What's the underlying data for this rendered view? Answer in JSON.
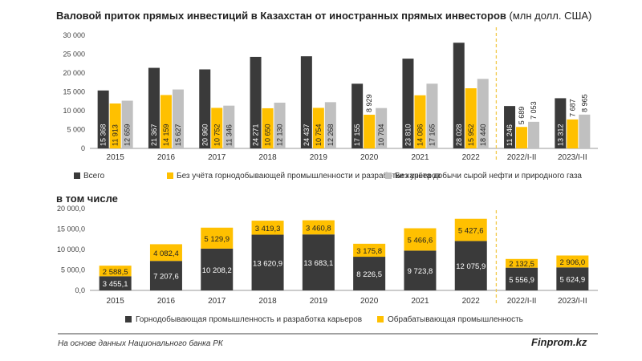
{
  "title": "Валовой приток прямых инвестиций в Казахстан от иностранных прямых инвесторов",
  "title_unit": "(млн долл. США)",
  "subtitle": "в том числе",
  "footer": {
    "source": "На основе данных Национального банка РК",
    "brand": "Finprom.kz"
  },
  "colors": {
    "dark": "#3a3a3a",
    "yellow": "#ffc000",
    "gray": "#c0c0c0",
    "divider": "#f2c94c"
  },
  "chart_data": [
    {
      "type": "bar",
      "categories": [
        "2015",
        "2016",
        "2017",
        "2018",
        "2019",
        "2020",
        "2021",
        "2022",
        "2022/I-II",
        "2023/I-II"
      ],
      "series": [
        {
          "name": "Всего",
          "values": [
            15368,
            21367,
            20960,
            24271,
            24437,
            17155,
            23810,
            28028,
            11246,
            13312
          ],
          "labels": [
            "15 368",
            "21 367",
            "20 960",
            "24 271",
            "24 437",
            "17 155",
            "23 810",
            "28 028",
            "11 246",
            "13 312"
          ]
        },
        {
          "name": "Без учёта горнодобывающей промышленности и разработки карьеров",
          "values": [
            11913,
            14159,
            10752,
            10650,
            10754,
            8929,
            14086,
            15952,
            5689,
            7687
          ],
          "labels": [
            "11 913",
            "14 159",
            "10 752",
            "10 650",
            "10 754",
            "8 929",
            "14 086",
            "15 952",
            "5 689",
            "7 687"
          ]
        },
        {
          "name": "Без учёта добычи сырой нефти и природного газа",
          "values": [
            12659,
            15627,
            11346,
            12130,
            12268,
            10704,
            17165,
            18440,
            7053,
            8965
          ],
          "labels": [
            "12 659",
            "15 627",
            "11 346",
            "12 130",
            "12 268",
            "10 704",
            "17 165",
            "18 440",
            "7 053",
            "8 965"
          ]
        }
      ],
      "ylim": [
        0,
        30000
      ],
      "yticks": [
        "0",
        "5 000",
        "10 000",
        "15 000",
        "20 000",
        "25 000",
        "30 000"
      ],
      "grid": false,
      "legend_position": "bottom"
    },
    {
      "type": "bar",
      "stacked": true,
      "categories": [
        "2015",
        "2016",
        "2017",
        "2018",
        "2019",
        "2020",
        "2021",
        "2022",
        "2022/I-II",
        "2023/I-II"
      ],
      "series": [
        {
          "name": "Горнодобывающая промышленность и разработка карьеров",
          "values": [
            3455.1,
            7207.6,
            10208.2,
            13620.9,
            13683.1,
            8226.5,
            9723.8,
            12075.9,
            5556.9,
            5624.9
          ],
          "labels": [
            "3 455,1",
            "7 207,6",
            "10 208,2",
            "13 620,9",
            "13 683,1",
            "8 226,5",
            "9 723,8",
            "12 075,9",
            "5 556,9",
            "5 624,9"
          ]
        },
        {
          "name": "Обрабатывающая промышленность",
          "values": [
            2588.5,
            4082.4,
            5129.9,
            3419.3,
            3460.8,
            3175.8,
            5466.6,
            5427.6,
            2132.5,
            2906.0
          ],
          "labels": [
            "2 588,5",
            "4 082,4",
            "5 129,9",
            "3 419,3",
            "3 460,8",
            "3 175,8",
            "5 466,6",
            "5 427,6",
            "2 132,5",
            "2 906,0"
          ]
        }
      ],
      "ylim": [
        0,
        20000
      ],
      "yticks": [
        "0,0",
        "5 000,0",
        "10 000,0",
        "15 000,0",
        "20 000,0"
      ],
      "grid": false,
      "legend_position": "bottom"
    }
  ]
}
